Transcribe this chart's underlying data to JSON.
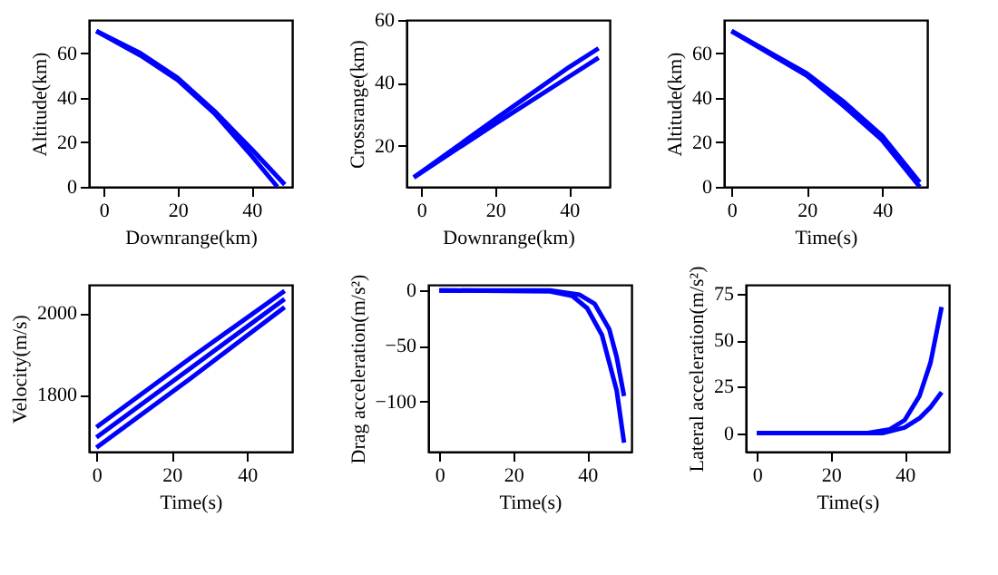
{
  "chart_data": [
    {
      "type": "line",
      "xlabel": "Downrange(km)",
      "ylabel": "Altitude(km)",
      "xlim": [
        -4,
        51
      ],
      "xticks": [
        0,
        20,
        40
      ],
      "ylim": [
        0,
        75
      ],
      "yticks": [
        0,
        20,
        40,
        60
      ],
      "series": [
        {
          "color": "#0000ff",
          "x": [
            -2,
            10,
            20,
            30,
            40,
            49
          ],
          "values": [
            70,
            60,
            49,
            34,
            17,
            1
          ]
        },
        {
          "color": "#0000ff",
          "x": [
            -2,
            10,
            20,
            30,
            40,
            47
          ],
          "values": [
            70,
            59,
            48,
            33,
            14,
            0
          ]
        }
      ]
    },
    {
      "type": "line",
      "xlabel": "Downrange(km)",
      "ylabel": "Crossrange(km)",
      "xlim": [
        -4,
        51
      ],
      "xticks": [
        0,
        20,
        40
      ],
      "ylim": [
        7,
        60
      ],
      "yticks": [
        20,
        40,
        60
      ],
      "series": [
        {
          "color": "#0000ff",
          "x": [
            -2,
            20,
            40,
            48
          ],
          "values": [
            10,
            28.5,
            45,
            51
          ]
        },
        {
          "color": "#0000ff",
          "x": [
            -2,
            20,
            40,
            48
          ],
          "values": [
            10,
            27,
            42,
            48
          ]
        }
      ]
    },
    {
      "type": "line",
      "xlabel": "Time(s)",
      "ylabel": "Altitude(km)",
      "xlim": [
        -2,
        52
      ],
      "xticks": [
        0,
        20,
        40
      ],
      "ylim": [
        0,
        75
      ],
      "yticks": [
        0,
        20,
        40,
        60
      ],
      "series": [
        {
          "color": "#0000ff",
          "x": [
            0,
            20,
            30,
            40,
            50
          ],
          "values": [
            70,
            51,
            38,
            23,
            2
          ]
        },
        {
          "color": "#0000ff",
          "x": [
            0,
            20,
            30,
            40,
            50
          ],
          "values": [
            70,
            50,
            36,
            21,
            0
          ]
        }
      ]
    },
    {
      "type": "line",
      "xlabel": "Time(s)",
      "ylabel": "Velocity(m/s)",
      "xlim": [
        -2,
        52
      ],
      "xticks": [
        0,
        20,
        40
      ],
      "ylim": [
        1660,
        2070
      ],
      "yticks": [
        1800,
        2000
      ],
      "series": [
        {
          "color": "#0000ff",
          "x": [
            0,
            25,
            50
          ],
          "values": [
            1720,
            1890,
            2055
          ]
        },
        {
          "color": "#0000ff",
          "x": [
            0,
            25,
            50
          ],
          "values": [
            1695,
            1865,
            2035
          ]
        },
        {
          "color": "#0000ff",
          "x": [
            0,
            25,
            50
          ],
          "values": [
            1670,
            1840,
            2015
          ]
        }
      ]
    },
    {
      "type": "line",
      "xlabel": "Time(s)",
      "ylabel": "Drag acceleration(m/s²)",
      "xlim": [
        -3,
        52
      ],
      "xticks": [
        0,
        20,
        40
      ],
      "ylim": [
        -145,
        5
      ],
      "yticks": [
        -100,
        -50,
        0
      ],
      "series": [
        {
          "color": "#0000ff",
          "x": [
            0,
            30,
            38,
            42,
            46,
            48,
            50
          ],
          "values": [
            0,
            0,
            -4,
            -12,
            -35,
            -60,
            -95
          ]
        },
        {
          "color": "#0000ff",
          "x": [
            0,
            30,
            36,
            40,
            44,
            48,
            50
          ],
          "values": [
            0,
            -1,
            -5,
            -16,
            -40,
            -90,
            -137
          ]
        }
      ]
    },
    {
      "type": "line",
      "xlabel": "Time(s)",
      "ylabel": "Lateral acceleration(m/s²)",
      "xlim": [
        -3,
        52
      ],
      "xticks": [
        0,
        20,
        40
      ],
      "ylim": [
        -10,
        80
      ],
      "yticks": [
        0,
        25,
        50,
        75
      ],
      "series": [
        {
          "color": "#0000ff",
          "x": [
            0,
            30,
            36,
            40,
            44,
            47,
            50
          ],
          "values": [
            0,
            0,
            2,
            7,
            20,
            38,
            68
          ]
        },
        {
          "color": "#0000ff",
          "x": [
            0,
            34,
            40,
            44,
            47,
            50
          ],
          "values": [
            0,
            0,
            3,
            8,
            14,
            22
          ]
        }
      ]
    }
  ]
}
